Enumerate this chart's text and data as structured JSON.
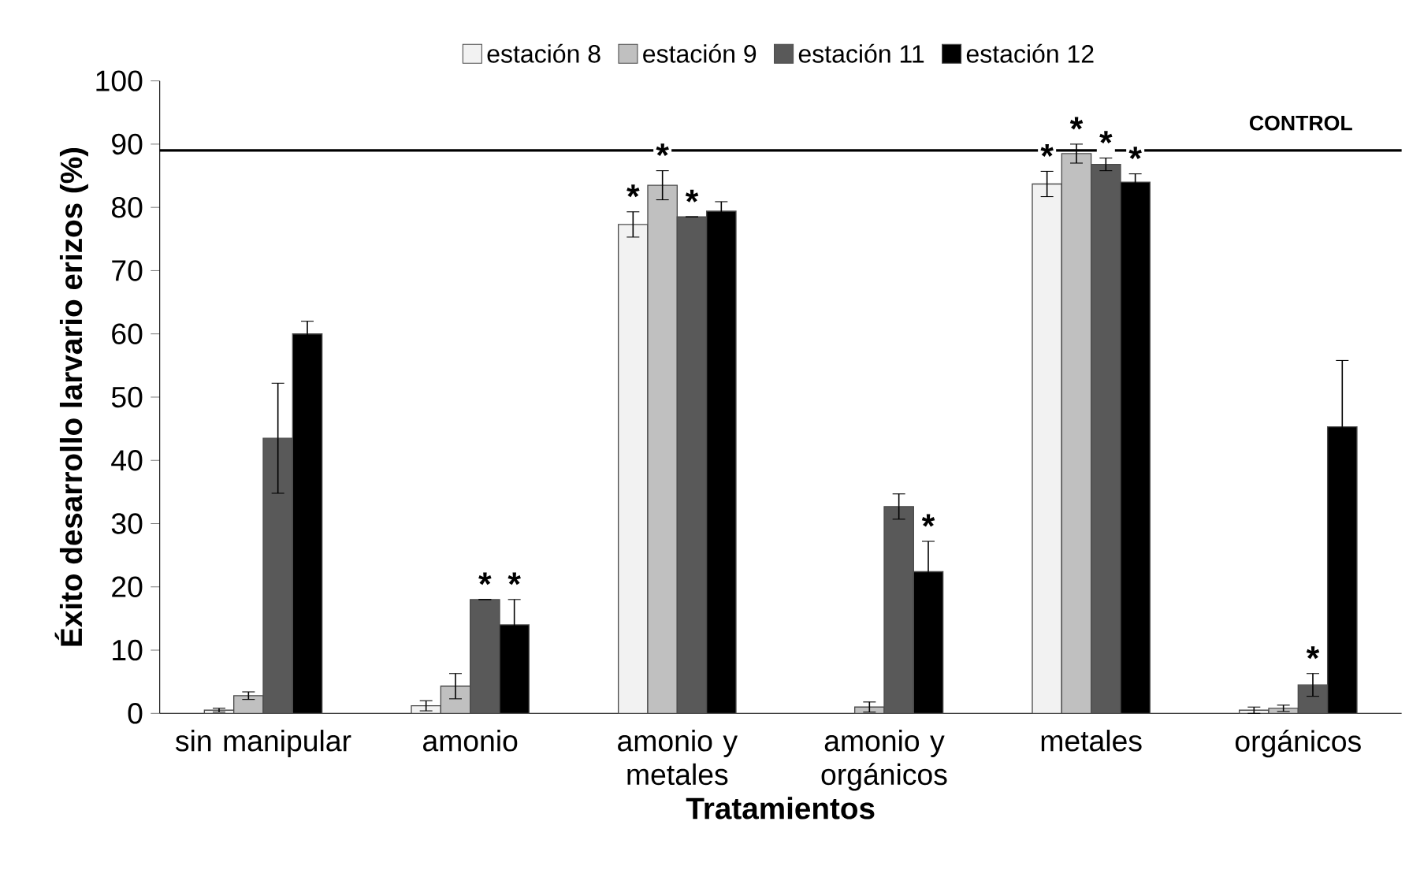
{
  "chart_data": {
    "type": "bar",
    "xlabel": "Tratamientos",
    "ylabel": "Éxito desarrollo larvario erizos (%)",
    "categories": [
      "sin manipular",
      "amonio",
      "amonio y metales",
      "amonio y orgánicos",
      "metales",
      "orgánicos"
    ],
    "series": [
      {
        "name": "estación 8",
        "color": "#f2f2f2",
        "values": [
          0.5,
          1.2,
          77.3,
          null,
          83.7,
          0.5
        ],
        "errors": [
          0.3,
          0.8,
          2,
          null,
          2,
          0.5
        ],
        "value_labels": [
          null,
          null,
          "*",
          null,
          "*",
          null
        ]
      },
      {
        "name": "estación 9",
        "color": "#c0c0c0",
        "values": [
          2.8,
          4.3,
          83.5,
          1,
          88.5,
          0.8
        ],
        "errors": [
          0.6,
          2,
          2.3,
          0.8,
          1.5,
          0.5
        ],
        "value_labels": [
          null,
          null,
          "*",
          null,
          "*",
          null
        ]
      },
      {
        "name": "estación 11",
        "color": "#595959",
        "values": [
          43.5,
          18,
          78.5,
          32.7,
          86.8,
          4.5
        ],
        "errors": [
          8.7,
          0,
          0,
          2,
          1,
          1.8
        ],
        "value_labels": [
          null,
          "*",
          "*",
          null,
          "*",
          "*"
        ]
      },
      {
        "name": "estación 12",
        "color": "#000000",
        "values": [
          60,
          14,
          79.4,
          22.4,
          84,
          45.3
        ],
        "errors": [
          2,
          4,
          1.5,
          4.8,
          1.3,
          10.5
        ],
        "value_labels": [
          null,
          "*",
          null,
          "*",
          "*",
          null
        ]
      }
    ],
    "ylim": [
      0,
      100
    ],
    "yticks": [
      0,
      10,
      20,
      30,
      40,
      50,
      60,
      70,
      80,
      90,
      100
    ],
    "ref_lines": [
      {
        "axis": "y",
        "value": 89,
        "label": "CONTROL",
        "color": "#000000"
      }
    ],
    "legend": "top",
    "grid": false
  }
}
